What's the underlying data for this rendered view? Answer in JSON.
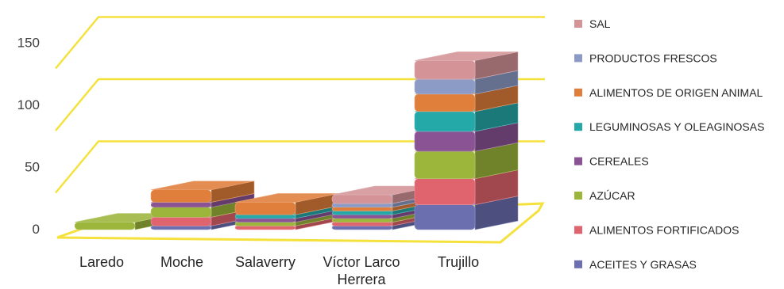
{
  "colors": {
    "gridline": "#F5E13C",
    "floor": "#F5E13C",
    "tick_text": "#404040",
    "label_text": "#262626"
  },
  "chart_data": {
    "type": "bar",
    "stacked": true,
    "three_d": true,
    "categories": [
      "Laredo",
      "Moche",
      "Salaverry",
      "Víctor Larco Herrera",
      "Trujillo"
    ],
    "category_lines": [
      [
        "Laredo"
      ],
      [
        "Moche"
      ],
      [
        "Salaverry"
      ],
      [
        "Víctor Larco",
        "Herrera"
      ],
      [
        "Trujillo"
      ]
    ],
    "yticks": [
      0,
      50,
      100,
      150
    ],
    "ylim": [
      0,
      160
    ],
    "grid": true,
    "legend_position": "right",
    "series": [
      {
        "name": "ACEITES Y GRASAS",
        "color": "#6B6FAF",
        "values": [
          0,
          3,
          0,
          3,
          20
        ]
      },
      {
        "name": "ALIMENTOS FORTIFICADOS",
        "color": "#E0646E",
        "values": [
          0,
          7,
          3,
          3,
          21
        ]
      },
      {
        "name": "AZÚCAR",
        "color": "#9CB53B",
        "values": [
          6,
          8,
          3,
          3,
          22
        ]
      },
      {
        "name": "CEREALES",
        "color": "#8A5494",
        "values": [
          0,
          4,
          3,
          3,
          16
        ]
      },
      {
        "name": "LEGUMINOSAS Y OLEAGINOSAS",
        "color": "#25A8A8",
        "values": [
          0,
          0,
          3,
          3,
          16
        ]
      },
      {
        "name": "ALIMENTOS DE ORIGEN ANIMAL",
        "color": "#E07E3C",
        "values": [
          0,
          10,
          10,
          3,
          14
        ]
      },
      {
        "name": "PRODUCTOS FRESCOS",
        "color": "#8C9BC6",
        "values": [
          0,
          0,
          0,
          3,
          12
        ]
      },
      {
        "name": "SAL",
        "color": "#D39397",
        "values": [
          0,
          0,
          0,
          7,
          15
        ]
      }
    ]
  }
}
